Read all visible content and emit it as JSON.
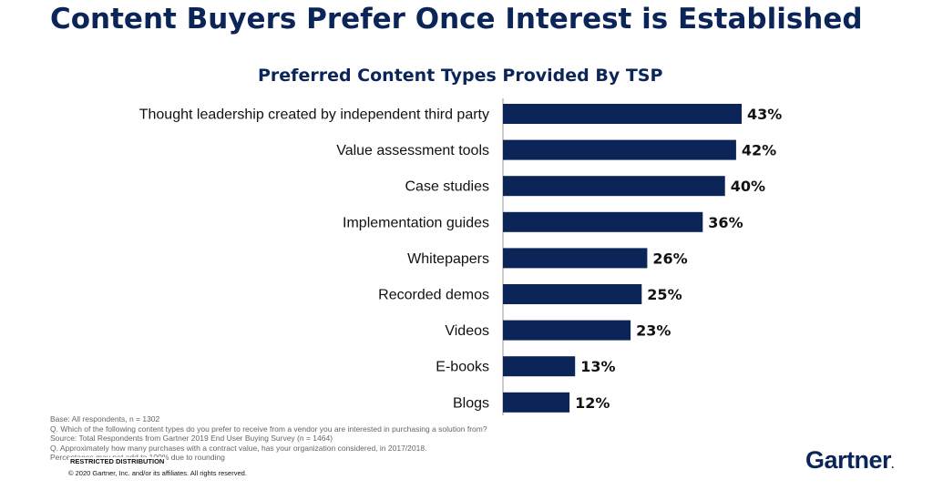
{
  "slide_title": "Content Buyers Prefer Once Interest is Established",
  "chart_data": {
    "type": "bar",
    "orientation": "horizontal",
    "title": "Preferred Content Types Provided By TSP",
    "categories": [
      "Thought leadership created by independent third party",
      "Value assessment tools",
      "Case studies",
      "Implementation guides",
      "Whitepapers",
      "Recorded demos",
      "Videos",
      "E-books",
      "Blogs"
    ],
    "values": [
      43,
      42,
      40,
      36,
      26,
      25,
      23,
      13,
      12
    ],
    "value_labels": [
      "43%",
      "42%",
      "40%",
      "36%",
      "26%",
      "25%",
      "23%",
      "13%",
      "12%"
    ],
    "xlim": [
      0,
      43
    ],
    "grid": false,
    "bar_color": "#0b2559"
  },
  "notes": [
    "Base: All respondents, n = 1302",
    "Q. Which of the following content types do you prefer to receive from a vendor you are interested in purchasing a solution from?",
    "Source: Total Respondents from Gartner 2019 End User Buying Survey (n = 1464)",
    "Q. Approximately how many purchases with a contract value, has your organization considered, in 2017/2018.",
    "Percentages may not add to 100% due to rounding"
  ],
  "footer": {
    "restricted": "RESTRICTED DISTRIBUTION",
    "copyright": "© 2020 Gartner, Inc. and/or its affiliates. All rights reserved."
  },
  "logo": {
    "text": "Gartner",
    "mark": "."
  },
  "colors": {
    "brand": "#0b2559",
    "text": "#111111",
    "note_text": "#666666"
  }
}
